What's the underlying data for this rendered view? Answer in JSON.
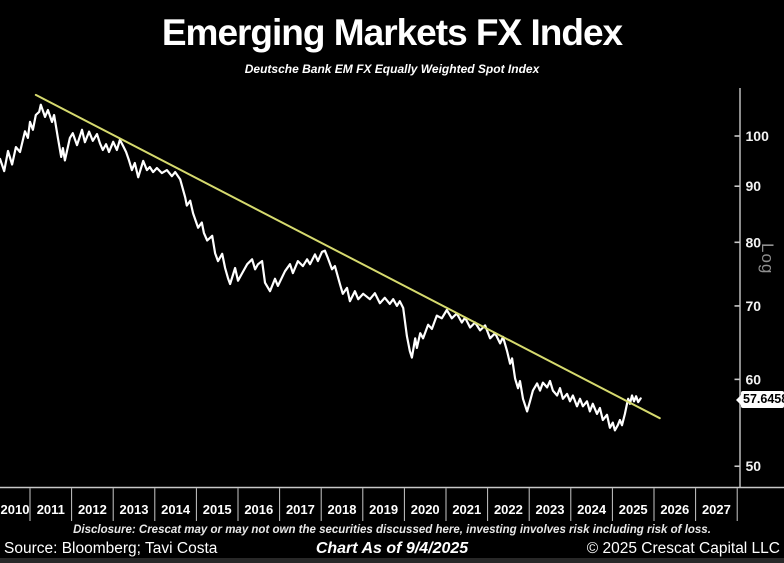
{
  "title": "Emerging Markets FX Index",
  "subtitle": "Deutsche Bank EM FX Equally Weighted Spot Index",
  "last_price_label": "57.6458",
  "axes": {
    "y_scale_label": "Log",
    "y_ticks": [
      100,
      90,
      80,
      70,
      60,
      50
    ],
    "x_years": [
      "2010",
      "2011",
      "2012",
      "2013",
      "2014",
      "2015",
      "2016",
      "2017",
      "2018",
      "2019",
      "2020",
      "2021",
      "2022",
      "2023",
      "2024",
      "2025",
      "2026",
      "2027"
    ]
  },
  "footer": {
    "disclosure": "Disclosure: Crescat may or may not own the securities discussed here, investing involves risk including risk of loss.",
    "source": "Source: Bloomberg; Tavi Costa",
    "as_of": "Chart As of 9/4/2025",
    "copyright": "© 2025 Crescat Capital LLC"
  },
  "colors": {
    "background": "#000000",
    "price_line": "#ffffff",
    "trendline": "#d6da6e",
    "axis": "#c8c8c8",
    "log_label": "#8f8f8f"
  },
  "chart_data": {
    "type": "line",
    "title": "Emerging Markets FX Index",
    "subtitle": "Deutsche Bank EM FX Equally Weighted Spot Index",
    "y_scale": "log",
    "y_ticks": [
      50,
      60,
      70,
      80,
      90,
      100
    ],
    "ylim": [
      47,
      115
    ],
    "x_range": [
      2010.27,
      2028.0
    ],
    "legend": "none",
    "grid": false,
    "last_value": 57.6458,
    "series": [
      {
        "name": "DB EM FX Equally Weighted Spot Index",
        "color": "#ffffff",
        "points": [
          [
            2010.28,
            95.3
          ],
          [
            2010.38,
            92.9
          ],
          [
            2010.47,
            96.9
          ],
          [
            2010.57,
            94.2
          ],
          [
            2010.66,
            97.7
          ],
          [
            2010.76,
            96.7
          ],
          [
            2010.88,
            101.0
          ],
          [
            2010.95,
            99.6
          ],
          [
            2011.0,
            103.0
          ],
          [
            2011.07,
            101.3
          ],
          [
            2011.14,
            104.5
          ],
          [
            2011.22,
            105.2
          ],
          [
            2011.26,
            106.8
          ],
          [
            2011.36,
            104.1
          ],
          [
            2011.43,
            105.6
          ],
          [
            2011.53,
            103.0
          ],
          [
            2011.58,
            104.5
          ],
          [
            2011.67,
            99.6
          ],
          [
            2011.75,
            95.7
          ],
          [
            2011.79,
            97.5
          ],
          [
            2011.84,
            95.0
          ],
          [
            2011.96,
            99.6
          ],
          [
            2012.03,
            100.6
          ],
          [
            2012.13,
            98.1
          ],
          [
            2012.25,
            101.3
          ],
          [
            2012.32,
            98.7
          ],
          [
            2012.42,
            100.9
          ],
          [
            2012.51,
            99.0
          ],
          [
            2012.61,
            100.4
          ],
          [
            2012.68,
            98.5
          ],
          [
            2012.75,
            97.1
          ],
          [
            2012.83,
            98.3
          ],
          [
            2012.9,
            96.7
          ],
          [
            2013.0,
            98.8
          ],
          [
            2013.09,
            97.1
          ],
          [
            2013.16,
            99.2
          ],
          [
            2013.24,
            97.9
          ],
          [
            2013.31,
            96.7
          ],
          [
            2013.38,
            95.0
          ],
          [
            2013.45,
            93.1
          ],
          [
            2013.52,
            94.5
          ],
          [
            2013.6,
            91.7
          ],
          [
            2013.72,
            94.9
          ],
          [
            2013.81,
            93.1
          ],
          [
            2013.88,
            93.7
          ],
          [
            2013.96,
            92.7
          ],
          [
            2014.05,
            93.5
          ],
          [
            2014.17,
            92.5
          ],
          [
            2014.29,
            93.1
          ],
          [
            2014.41,
            91.9
          ],
          [
            2014.49,
            92.7
          ],
          [
            2014.61,
            91.3
          ],
          [
            2014.73,
            87.9
          ],
          [
            2014.77,
            86.4
          ],
          [
            2014.85,
            87.3
          ],
          [
            2014.92,
            85.0
          ],
          [
            2015.04,
            82.5
          ],
          [
            2015.13,
            83.4
          ],
          [
            2015.18,
            81.6
          ],
          [
            2015.26,
            80.3
          ],
          [
            2015.38,
            81.1
          ],
          [
            2015.45,
            78.2
          ],
          [
            2015.52,
            76.9
          ],
          [
            2015.62,
            78.1
          ],
          [
            2015.69,
            75.8
          ],
          [
            2015.76,
            74.2
          ],
          [
            2015.81,
            73.3
          ],
          [
            2015.93,
            75.8
          ],
          [
            2016.0,
            73.8
          ],
          [
            2016.1,
            75.0
          ],
          [
            2016.22,
            76.4
          ],
          [
            2016.34,
            77.2
          ],
          [
            2016.41,
            75.6
          ],
          [
            2016.48,
            76.4
          ],
          [
            2016.58,
            76.9
          ],
          [
            2016.65,
            73.5
          ],
          [
            2016.77,
            72.2
          ],
          [
            2016.89,
            74.1
          ],
          [
            2016.96,
            73.0
          ],
          [
            2017.13,
            75.3
          ],
          [
            2017.25,
            76.4
          ],
          [
            2017.32,
            75.0
          ],
          [
            2017.44,
            76.9
          ],
          [
            2017.56,
            76.1
          ],
          [
            2017.66,
            77.2
          ],
          [
            2017.73,
            76.4
          ],
          [
            2017.85,
            78.0
          ],
          [
            2017.92,
            76.9
          ],
          [
            2018.02,
            78.4
          ],
          [
            2018.09,
            78.6
          ],
          [
            2018.16,
            77.4
          ],
          [
            2018.26,
            75.6
          ],
          [
            2018.33,
            76.1
          ],
          [
            2018.45,
            73.3
          ],
          [
            2018.52,
            71.8
          ],
          [
            2018.62,
            72.7
          ],
          [
            2018.69,
            70.7
          ],
          [
            2018.81,
            72.2
          ],
          [
            2018.89,
            71.0
          ],
          [
            2019.01,
            71.8
          ],
          [
            2019.17,
            71.0
          ],
          [
            2019.29,
            71.9
          ],
          [
            2019.41,
            70.4
          ],
          [
            2019.53,
            71.2
          ],
          [
            2019.65,
            70.3
          ],
          [
            2019.73,
            71.0
          ],
          [
            2019.82,
            70.0
          ],
          [
            2019.89,
            70.7
          ],
          [
            2019.97,
            69.7
          ],
          [
            2020.06,
            65.7
          ],
          [
            2020.13,
            63.7
          ],
          [
            2020.18,
            62.8
          ],
          [
            2020.26,
            65.4
          ],
          [
            2020.3,
            64.1
          ],
          [
            2020.38,
            66.1
          ],
          [
            2020.45,
            65.4
          ],
          [
            2020.57,
            67.3
          ],
          [
            2020.66,
            66.7
          ],
          [
            2020.78,
            68.6
          ],
          [
            2020.9,
            68.2
          ],
          [
            2021.02,
            69.4
          ],
          [
            2021.14,
            68.2
          ],
          [
            2021.26,
            68.9
          ],
          [
            2021.38,
            67.6
          ],
          [
            2021.46,
            68.3
          ],
          [
            2021.58,
            66.9
          ],
          [
            2021.7,
            67.6
          ],
          [
            2021.82,
            66.5
          ],
          [
            2021.94,
            67.2
          ],
          [
            2022.06,
            65.4
          ],
          [
            2022.18,
            66.1
          ],
          [
            2022.3,
            64.7
          ],
          [
            2022.37,
            65.6
          ],
          [
            2022.47,
            63.6
          ],
          [
            2022.54,
            62.0
          ],
          [
            2022.59,
            62.7
          ],
          [
            2022.66,
            60.1
          ],
          [
            2022.73,
            58.9
          ],
          [
            2022.78,
            59.8
          ],
          [
            2022.85,
            57.6
          ],
          [
            2022.95,
            56.1
          ],
          [
            2023.02,
            57.3
          ],
          [
            2023.09,
            58.6
          ],
          [
            2023.19,
            59.5
          ],
          [
            2023.26,
            58.6
          ],
          [
            2023.33,
            59.6
          ],
          [
            2023.43,
            59.0
          ],
          [
            2023.5,
            59.8
          ],
          [
            2023.57,
            58.6
          ],
          [
            2023.67,
            58.0
          ],
          [
            2023.74,
            58.9
          ],
          [
            2023.81,
            57.6
          ],
          [
            2023.91,
            58.2
          ],
          [
            2023.98,
            57.3
          ],
          [
            2024.05,
            58.0
          ],
          [
            2024.15,
            56.7
          ],
          [
            2024.22,
            57.6
          ],
          [
            2024.29,
            56.7
          ],
          [
            2024.39,
            57.3
          ],
          [
            2024.46,
            56.1
          ],
          [
            2024.53,
            57.0
          ],
          [
            2024.63,
            55.8
          ],
          [
            2024.7,
            56.5
          ],
          [
            2024.77,
            55.1
          ],
          [
            2024.87,
            55.7
          ],
          [
            2024.94,
            54.2
          ],
          [
            2025.01,
            54.8
          ],
          [
            2025.06,
            53.9
          ],
          [
            2025.13,
            54.5
          ],
          [
            2025.18,
            55.1
          ],
          [
            2025.23,
            54.5
          ],
          [
            2025.3,
            55.8
          ],
          [
            2025.35,
            57.0
          ],
          [
            2025.38,
            57.6
          ],
          [
            2025.42,
            57.0
          ],
          [
            2025.47,
            58.0
          ],
          [
            2025.52,
            57.3
          ],
          [
            2025.57,
            57.9
          ],
          [
            2025.62,
            57.2
          ],
          [
            2025.68,
            57.6458
          ]
        ]
      },
      {
        "name": "Downtrend resistance line",
        "color": "#d6da6e",
        "style": "trendline",
        "points": [
          [
            2011.14,
            109.0
          ],
          [
            2026.14,
            55.3
          ]
        ]
      }
    ]
  }
}
